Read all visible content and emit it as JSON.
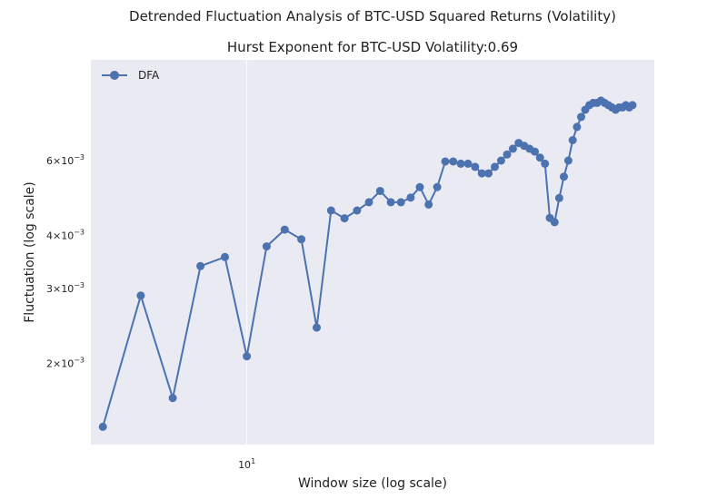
{
  "chart_data": {
    "type": "line",
    "suptitle": "Detrended Fluctuation Analysis of BTC-USD Squared Returns (Volatility)",
    "title": "Hurst Exponent for BTC-USD Volatility:0.69",
    "xlabel": "Window size (log scale)",
    "ylabel": "Fluctuation (log scale)",
    "xscale": "log",
    "yscale": "log",
    "xlim": [
      4.72,
      71.1
    ],
    "ylim": [
      0.00129,
      0.01035
    ],
    "grid": true,
    "legend_position": "top-left",
    "x_ticks": [
      {
        "base": "10",
        "exp": "1",
        "value": 10
      }
    ],
    "y_ticks": [
      {
        "mant": "2",
        "value": 0.002
      },
      {
        "mant": "3",
        "value": 0.003
      },
      {
        "mant": "4",
        "value": 0.004
      },
      {
        "mant": "6",
        "value": 0.006
      }
    ],
    "series": [
      {
        "name": "DFA",
        "color": "#4c72b0",
        "marker": "circle",
        "x": [
          5,
          6,
          7,
          8,
          9,
          10,
          11,
          12,
          13,
          14,
          15,
          16,
          17,
          18,
          19,
          20,
          21,
          22,
          23,
          24,
          25,
          26,
          27,
          28,
          29,
          30,
          31,
          32,
          33,
          34,
          35,
          36,
          37,
          38,
          39,
          40,
          41,
          42,
          43,
          44,
          45,
          46,
          47,
          48,
          49,
          50,
          51,
          52,
          53,
          54,
          55,
          56,
          57,
          58,
          59,
          60,
          61,
          62,
          63,
          64
        ],
        "y": [
          0.00142,
          0.00289,
          0.00166,
          0.00339,
          0.00356,
          0.00208,
          0.00377,
          0.00413,
          0.00392,
          0.00243,
          0.00458,
          0.00439,
          0.00458,
          0.00479,
          0.00509,
          0.00479,
          0.00479,
          0.00491,
          0.0052,
          0.00473,
          0.0052,
          0.00597,
          0.00597,
          0.0059,
          0.0059,
          0.0058,
          0.0056,
          0.0056,
          0.0058,
          0.006,
          0.0062,
          0.0064,
          0.0066,
          0.0065,
          0.0064,
          0.0063,
          0.0061,
          0.0059,
          0.0044,
          0.0043,
          0.0049,
          0.0055,
          0.006,
          0.0067,
          0.0072,
          0.0076,
          0.0079,
          0.0081,
          0.0082,
          0.0082,
          0.0083,
          0.0082,
          0.0081,
          0.008,
          0.0079,
          0.008,
          0.008,
          0.0081,
          0.008,
          0.0081
        ]
      }
    ]
  }
}
